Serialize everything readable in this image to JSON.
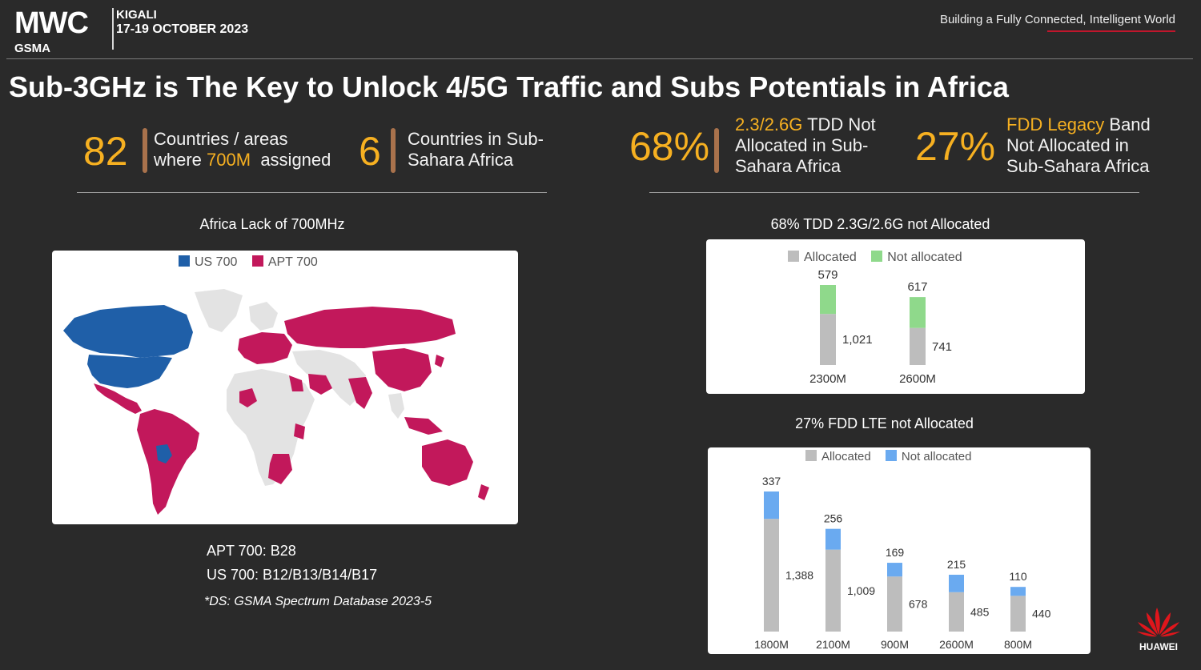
{
  "header": {
    "logo": "MWC",
    "logo_sub": "GSMA",
    "event_city": "KIGALI",
    "event_date": "17-19 OCTOBER 2023",
    "tagline": "Building a Fully Connected, Intelligent World"
  },
  "title": "Sub-3GHz is The Key to Unlock 4/5G Traffic and Subs Potentials in Africa",
  "kpis": [
    {
      "value": "82",
      "line1": "Countries / areas",
      "line2_a": "where ",
      "line2_hl": "700M",
      "line2_b": "  assigned"
    },
    {
      "value": "6",
      "line1": "Countries in Sub-",
      "line2": "Sahara Africa"
    },
    {
      "value": "68%",
      "line1_hl": "2.3/2.6G",
      "line1_b": " TDD Not",
      "line2": "Allocated in Sub-",
      "line3": "Sahara Africa"
    },
    {
      "value": "27%",
      "line1_hl": "FDD Legacy",
      "line1_b": " Band",
      "line2": "Not Allocated in",
      "line3": "Sub-Sahara Africa"
    }
  ],
  "map": {
    "title": "Africa Lack of 700MHz",
    "legend": [
      {
        "label": "US 700",
        "color": "#1f5fa8"
      },
      {
        "label": "APT 700",
        "color": "#c2185b"
      }
    ],
    "land_color": "#e3e3e3"
  },
  "notes": {
    "apt": "APT 700: B28",
    "us": "US 700: B12/B13/B14/B17",
    "source": "*DS: GSMA Spectrum Database 2023-5"
  },
  "chart_data": [
    {
      "type": "bar",
      "stacked": true,
      "title": "68% TDD 2.3G/2.6G not Allocated",
      "categories": [
        "2300M",
        "2600M"
      ],
      "series": [
        {
          "name": "Allocated",
          "values": [
            1021,
            741
          ],
          "color": "#bdbdbd"
        },
        {
          "name": "Not allocated",
          "values": [
            579,
            617
          ],
          "color": "#8fd98b"
        }
      ],
      "legend_position": "top",
      "ylim": [
        0,
        1600
      ]
    },
    {
      "type": "bar",
      "stacked": true,
      "title": "27% FDD LTE not Allocated",
      "categories": [
        "1800M",
        "2100M",
        "900M",
        "2600M",
        "800M"
      ],
      "series": [
        {
          "name": "Allocated",
          "values": [
            1388,
            1009,
            678,
            485,
            440
          ],
          "color": "#bdbdbd"
        },
        {
          "name": "Not allocated",
          "values": [
            337,
            256,
            169,
            215,
            110
          ],
          "color": "#6aaaf0"
        }
      ],
      "legend_position": "top",
      "ylim": [
        0,
        1725
      ]
    }
  ],
  "brand": {
    "name": "HUAWEI",
    "color": "#e0161c"
  }
}
